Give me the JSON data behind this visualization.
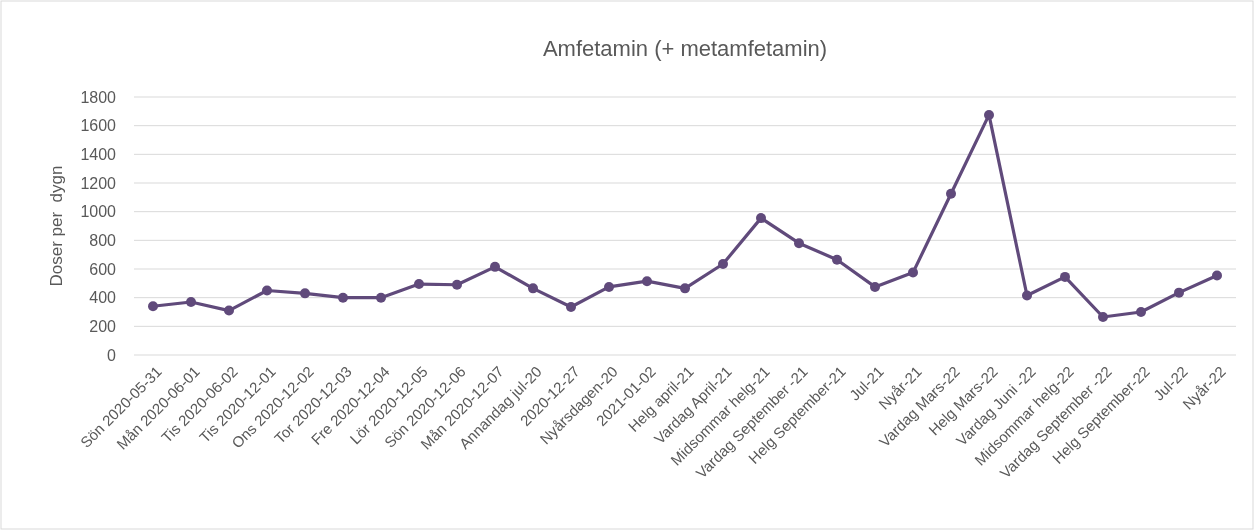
{
  "chart_data": {
    "type": "line",
    "title": "Amfetamin (+ metamfetamin)",
    "ylabel": "Doser per  dygn",
    "categories": [
      "Sön 2020-05-31",
      "Mån 2020-06-01",
      "Tis 2020-06-02",
      "Tis 2020-12-01",
      "Ons 2020-12-02",
      "Tor 2020-12-03",
      "Fre 2020-12-04",
      "Lör 2020-12-05",
      "Sön 2020-12-06",
      "Mån 2020-12-07",
      "Annandag jul-20",
      "2020-12-27",
      "Nyårsdagen-20",
      "2021-01-02",
      "Helg april-21",
      "Vardag April-21",
      "Midsommar helg-21",
      "Vardag September -21",
      "Helg September-21",
      "Jul-21",
      "Nyår-21",
      "Vardag Mars-22",
      "Helg Mars-22",
      "Vardag Juni -22",
      "Midsommar helg-22",
      "Vardag September -22",
      "Helg September-22",
      "Jul-22",
      "Nyår-22"
    ],
    "series": [
      {
        "color": "#604a7b",
        "values": [
          340,
          370,
          310,
          450,
          430,
          400,
          400,
          495,
          490,
          615,
          465,
          335,
          475,
          515,
          465,
          635,
          955,
          780,
          665,
          475,
          575,
          1125,
          1675,
          415,
          545,
          265,
          300,
          435,
          555
        ]
      }
    ],
    "ylim": [
      0,
      1800
    ],
    "yticks": [
      0,
      200,
      400,
      600,
      800,
      1000,
      1200,
      1400,
      1600,
      1800
    ],
    "grid": "y",
    "marker": "circle",
    "line_style": "solid"
  }
}
